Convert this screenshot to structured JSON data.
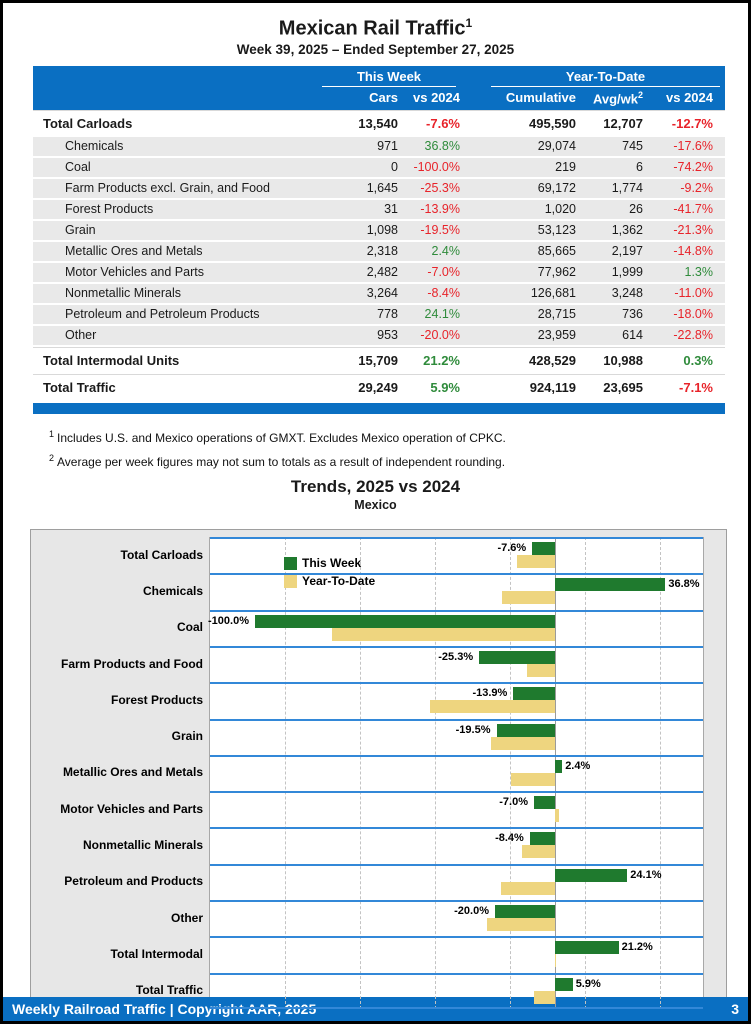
{
  "header": {
    "title": "Mexican Rail Traffic",
    "title_superscript": "1",
    "subtitle": "Week 39, 2025 – Ended September 27, 2025"
  },
  "table": {
    "group_this_week": "This Week",
    "group_ytd": "Year-To-Date",
    "col_cars": "Cars",
    "col_vs_2024_week": "vs 2024",
    "col_cumulative": "Cumulative",
    "col_avg_wk": "Avg/wk",
    "col_avg_wk_superscript": "2",
    "col_vs_2024_ytd": "vs 2024",
    "rows": [
      {
        "label": "Total Carloads",
        "total": true,
        "cars": "13,540",
        "vs": "-7.6%",
        "cumulative": "495,590",
        "avg_wk": "12,707",
        "vs_ytd": "-12.7%"
      },
      {
        "label": "Chemicals",
        "total": false,
        "cars": "971",
        "vs": "36.8%",
        "cumulative": "29,074",
        "avg_wk": "745",
        "vs_ytd": "-17.6%"
      },
      {
        "label": "Coal",
        "total": false,
        "cars": "0",
        "vs": "-100.0%",
        "cumulative": "219",
        "avg_wk": "6",
        "vs_ytd": "-74.2%"
      },
      {
        "label": "Farm Products excl. Grain, and Food",
        "total": false,
        "cars": "1,645",
        "vs": "-25.3%",
        "cumulative": "69,172",
        "avg_wk": "1,774",
        "vs_ytd": "-9.2%"
      },
      {
        "label": "Forest Products",
        "total": false,
        "cars": "31",
        "vs": "-13.9%",
        "cumulative": "1,020",
        "avg_wk": "26",
        "vs_ytd": "-41.7%"
      },
      {
        "label": "Grain",
        "total": false,
        "cars": "1,098",
        "vs": "-19.5%",
        "cumulative": "53,123",
        "avg_wk": "1,362",
        "vs_ytd": "-21.3%"
      },
      {
        "label": "Metallic Ores and Metals",
        "total": false,
        "cars": "2,318",
        "vs": "2.4%",
        "cumulative": "85,665",
        "avg_wk": "2,197",
        "vs_ytd": "-14.8%"
      },
      {
        "label": "Motor Vehicles and Parts",
        "total": false,
        "cars": "2,482",
        "vs": "-7.0%",
        "cumulative": "77,962",
        "avg_wk": "1,999",
        "vs_ytd": "1.3%"
      },
      {
        "label": "Nonmetallic Minerals",
        "total": false,
        "cars": "3,264",
        "vs": "-8.4%",
        "cumulative": "126,681",
        "avg_wk": "3,248",
        "vs_ytd": "-11.0%"
      },
      {
        "label": "Petroleum and Petroleum Products",
        "total": false,
        "cars": "778",
        "vs": "24.1%",
        "cumulative": "28,715",
        "avg_wk": "736",
        "vs_ytd": "-18.0%"
      },
      {
        "label": "Other",
        "total": false,
        "cars": "953",
        "vs": "-20.0%",
        "cumulative": "23,959",
        "avg_wk": "614",
        "vs_ytd": "-22.8%"
      },
      {
        "label": "Total Intermodal Units",
        "total": true,
        "cars": "15,709",
        "vs": "21.2%",
        "cumulative": "428,529",
        "avg_wk": "10,988",
        "vs_ytd": "0.3%"
      },
      {
        "label": "Total Traffic",
        "total": true,
        "cars": "29,249",
        "vs": "5.9%",
        "cumulative": "924,119",
        "avg_wk": "23,695",
        "vs_ytd": "-7.1%"
      }
    ]
  },
  "footnotes": [
    {
      "sup": "1",
      "text": "Includes U.S. and Mexico operations of GMXT. Excludes Mexico operation of CPKC."
    },
    {
      "sup": "2",
      "text": "Average per week figures may not sum to totals as a result of independent rounding."
    }
  ],
  "chart_data": {
    "type": "bar",
    "orientation": "horizontal",
    "title": "Trends, 2025 vs 2024",
    "subtitle": "Mexico",
    "categories": [
      "Total Carloads",
      "Chemicals",
      "Coal",
      "Farm Products and Food",
      "Forest Products",
      "Grain",
      "Metallic Ores and Metals",
      "Motor Vehicles and Parts",
      "Nonmetallic Minerals",
      "Petroleum and Products",
      "Other",
      "Total Intermodal",
      "Total Traffic"
    ],
    "series": [
      {
        "name": "This Week",
        "color": "#1f7a2e",
        "values": [
          -7.6,
          36.8,
          -100.0,
          -25.3,
          -13.9,
          -19.5,
          2.4,
          -7.0,
          -8.4,
          24.1,
          -20.0,
          21.2,
          5.9
        ]
      },
      {
        "name": "Year-To-Date",
        "color": "#eed57f",
        "values": [
          -12.7,
          -17.6,
          -74.2,
          -9.2,
          -41.7,
          -21.3,
          -14.8,
          1.3,
          -11.0,
          -18.0,
          -22.8,
          0.3,
          -7.1
        ]
      }
    ],
    "data_labels_on_series": "This Week",
    "xlim": [
      -115,
      50
    ],
    "ticks": [
      -115,
      -90,
      -65,
      -40,
      -15,
      10,
      35
    ],
    "tick_suffix": "%",
    "grid": true,
    "legend_position": "inside-top-left"
  },
  "footer": {
    "left": "Weekly Railroad Traffic | Copyright AAR, 2025",
    "page": "3"
  },
  "colors": {
    "header_blue": "#0a6fc2",
    "negative_red": "#e8232a",
    "positive_green": "#2f8b3b",
    "bar_green": "#1f7a2e",
    "bar_tan": "#eed57f",
    "row_separator_blue": "#3388d8"
  }
}
